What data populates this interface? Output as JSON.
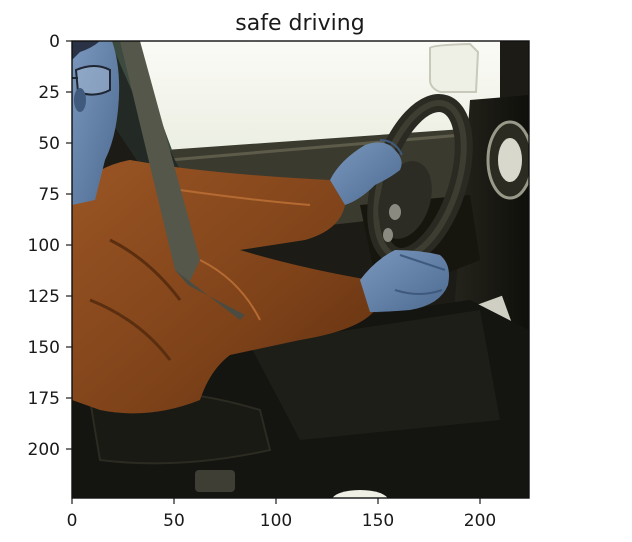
{
  "figure": {
    "title": "safe driving",
    "image_content": "Driver wearing glasses and a rust-orange long-sleeve shirt with seatbelt, both hands on steering wheel, seen from passenger side; blue-tinted skin (BGR color channels)",
    "colors": {
      "shirt": "#8a4a1e",
      "skin": "#5f7ea6",
      "window_light": "#f7f7ef",
      "interior_dark": "#1b1a14",
      "frame": "#111111"
    }
  },
  "axes": {
    "x_range": [
      0,
      224
    ],
    "y_range": [
      224,
      0
    ],
    "x_ticks": [
      "0",
      "50",
      "100",
      "150",
      "200"
    ],
    "y_ticks": [
      "0",
      "25",
      "50",
      "75",
      "100",
      "125",
      "150",
      "175",
      "200"
    ]
  }
}
